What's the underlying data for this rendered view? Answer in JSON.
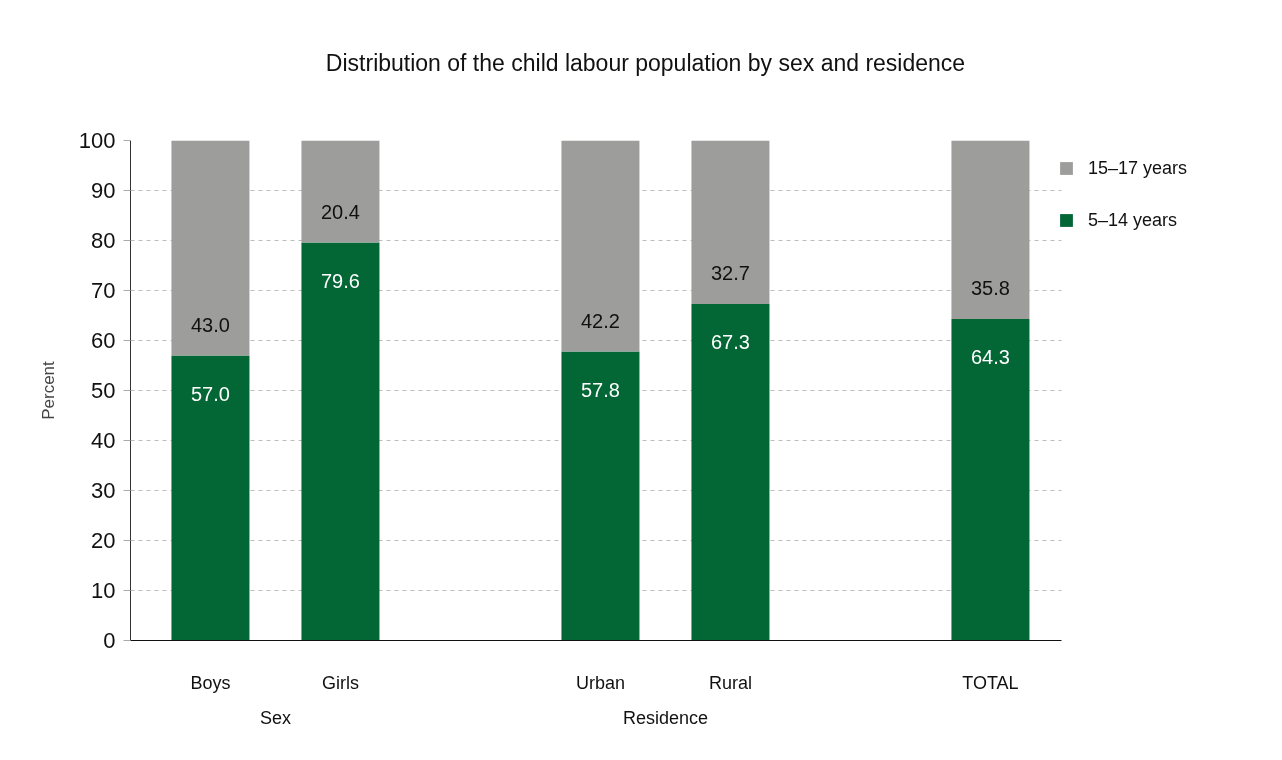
{
  "chart_data": {
    "type": "bar",
    "title": "Distribution of the child labour population by sex and residence",
    "ylabel": "Percent",
    "categories": [
      "Boys",
      "Girls",
      null,
      "Urban",
      "Rural",
      null,
      "TOTAL"
    ],
    "stacked": true,
    "series": [
      {
        "name": "5–14 years",
        "color": "#036635",
        "values": [
          57.0,
          79.6,
          null,
          57.8,
          67.3,
          null,
          64.3
        ],
        "value_labels": [
          "57.0",
          "79.6",
          null,
          "57.8",
          "67.3",
          null,
          "64.3"
        ]
      },
      {
        "name": "15–17 years",
        "color": "#9d9d9b",
        "values": [
          43.0,
          20.4,
          null,
          42.2,
          32.7,
          null,
          35.8
        ],
        "value_labels": [
          "43.0",
          "20.4",
          null,
          "42.2",
          "32.7",
          null,
          "35.8"
        ]
      }
    ],
    "ylim": [
      0,
      100
    ],
    "yticks": [
      0,
      10,
      20,
      30,
      40,
      50,
      60,
      70,
      80,
      90,
      100
    ],
    "grid": "y",
    "legend": "right",
    "annotations": [
      "Sex",
      "Residence"
    ]
  }
}
